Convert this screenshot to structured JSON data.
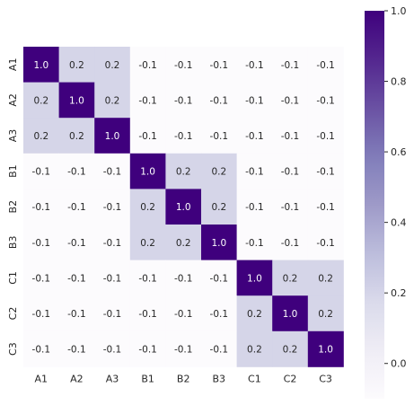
{
  "chart_data": {
    "type": "heatmap",
    "title": "",
    "xlabel": "",
    "ylabel": "",
    "x_categories": [
      "A1",
      "A2",
      "A3",
      "B1",
      "B2",
      "B3",
      "C1",
      "C2",
      "C3"
    ],
    "y_categories": [
      "A1",
      "A2",
      "A3",
      "B1",
      "B2",
      "B3",
      "C1",
      "C2",
      "C3"
    ],
    "values": [
      [
        1.0,
        0.2,
        0.2,
        -0.1,
        -0.1,
        -0.1,
        -0.1,
        -0.1,
        -0.1
      ],
      [
        0.2,
        1.0,
        0.2,
        -0.1,
        -0.1,
        -0.1,
        -0.1,
        -0.1,
        -0.1
      ],
      [
        0.2,
        0.2,
        1.0,
        -0.1,
        -0.1,
        -0.1,
        -0.1,
        -0.1,
        -0.1
      ],
      [
        -0.1,
        -0.1,
        -0.1,
        1.0,
        0.2,
        0.2,
        -0.1,
        -0.1,
        -0.1
      ],
      [
        -0.1,
        -0.1,
        -0.1,
        0.2,
        1.0,
        0.2,
        -0.1,
        -0.1,
        -0.1
      ],
      [
        -0.1,
        -0.1,
        -0.1,
        0.2,
        0.2,
        1.0,
        -0.1,
        -0.1,
        -0.1
      ],
      [
        -0.1,
        -0.1,
        -0.1,
        -0.1,
        -0.1,
        -0.1,
        1.0,
        0.2,
        0.2
      ],
      [
        -0.1,
        -0.1,
        -0.1,
        -0.1,
        -0.1,
        -0.1,
        0.2,
        1.0,
        0.2
      ],
      [
        -0.1,
        -0.1,
        -0.1,
        -0.1,
        -0.1,
        -0.1,
        0.2,
        0.2,
        1.0
      ]
    ],
    "cell_labels": [
      [
        "1.0",
        "0.2",
        "0.2",
        "-0.1",
        "-0.1",
        "-0.1",
        "-0.1",
        "-0.1",
        "-0.1"
      ],
      [
        "0.2",
        "1.0",
        "0.2",
        "-0.1",
        "-0.1",
        "-0.1",
        "-0.1",
        "-0.1",
        "-0.1"
      ],
      [
        "0.2",
        "0.2",
        "1.0",
        "-0.1",
        "-0.1",
        "-0.1",
        "-0.1",
        "-0.1",
        "-0.1"
      ],
      [
        "-0.1",
        "-0.1",
        "-0.1",
        "1.0",
        "0.2",
        "0.2",
        "-0.1",
        "-0.1",
        "-0.1"
      ],
      [
        "-0.1",
        "-0.1",
        "-0.1",
        "0.2",
        "1.0",
        "0.2",
        "-0.1",
        "-0.1",
        "-0.1"
      ],
      [
        "-0.1",
        "-0.1",
        "-0.1",
        "0.2",
        "0.2",
        "1.0",
        "-0.1",
        "-0.1",
        "-0.1"
      ],
      [
        "-0.1",
        "-0.1",
        "-0.1",
        "-0.1",
        "-0.1",
        "-0.1",
        "1.0",
        "0.2",
        "0.2"
      ],
      [
        "-0.1",
        "-0.1",
        "-0.1",
        "-0.1",
        "-0.1",
        "-0.1",
        "0.2",
        "1.0",
        "0.2"
      ],
      [
        "-0.1",
        "-0.1",
        "-0.1",
        "-0.1",
        "-0.1",
        "-0.1",
        "0.2",
        "0.2",
        "1.0"
      ]
    ],
    "colorbar": {
      "colormap": "Purples",
      "vmin": -0.1,
      "vmax": 1.0,
      "ticks": [
        0.0,
        0.2,
        0.4,
        0.6,
        0.8,
        1.0
      ],
      "tick_labels": [
        "0.0",
        "0.2",
        "0.4",
        "0.6",
        "0.8",
        "1.0"
      ]
    },
    "grid": false,
    "colors": {
      "low": "#fcfbfd",
      "mid": "#cbcbe3",
      "high": "#3f007d",
      "text_dark": "#262626",
      "text_light": "#ffffff"
    }
  }
}
